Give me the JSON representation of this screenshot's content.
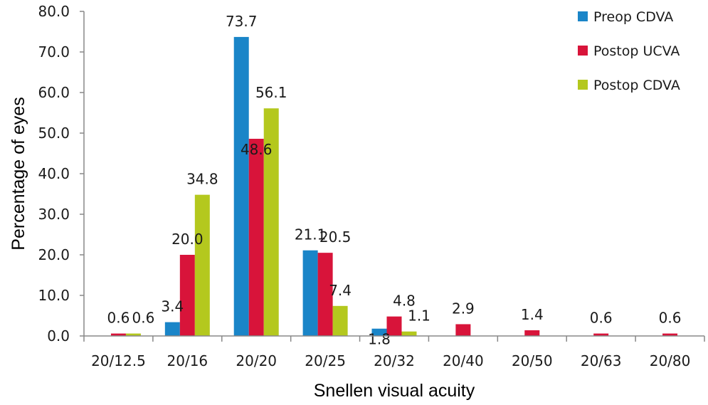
{
  "chart_data": {
    "type": "bar",
    "categories": [
      "20/12.5",
      "20/16",
      "20/20",
      "20/25",
      "20/32",
      "20/40",
      "20/50",
      "20/63",
      "20/80"
    ],
    "series": [
      {
        "name": "Preop CDVA",
        "color": "#1a85c8",
        "values": [
          null,
          3.4,
          73.7,
          21.1,
          1.8,
          null,
          null,
          null,
          null
        ]
      },
      {
        "name": "Postop UCVA",
        "color": "#d8143a",
        "values": [
          0.6,
          20.0,
          48.6,
          20.5,
          4.8,
          2.9,
          1.4,
          0.6,
          0.6
        ]
      },
      {
        "name": "Postop CDVA",
        "color": "#b4c81e",
        "values": [
          0.6,
          34.8,
          56.1,
          7.4,
          1.1,
          null,
          null,
          null,
          null
        ]
      }
    ],
    "xlabel": "Snellen visual acuity",
    "ylabel": "Percentage of eyes",
    "ylim": [
      0,
      80
    ],
    "yticks": [
      "0.0",
      "10.0",
      "20.0",
      "30.0",
      "40.0",
      "50.0",
      "60.0",
      "70.0",
      "80.0"
    ],
    "grid": false,
    "legend_position": "top-right"
  }
}
